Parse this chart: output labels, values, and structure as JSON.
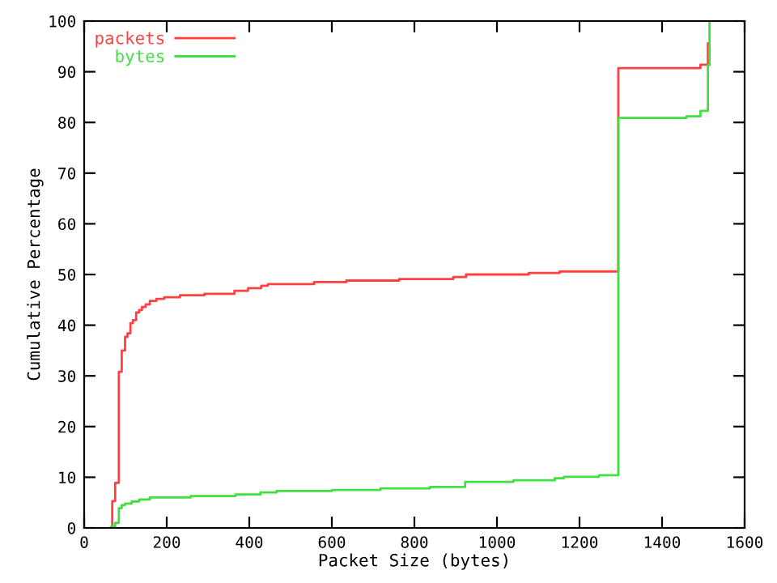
{
  "chart_data": {
    "type": "step",
    "xlabel": "Packet Size (bytes)",
    "ylabel": "Cumulative Percentage",
    "xlim": [
      0,
      1600
    ],
    "ylim": [
      0,
      100
    ],
    "xticks": [
      0,
      200,
      400,
      600,
      800,
      1000,
      1200,
      1400,
      1600
    ],
    "yticks": [
      0,
      10,
      20,
      30,
      40,
      50,
      60,
      70,
      80,
      90,
      100
    ],
    "legend": "top left",
    "grid": false,
    "series": [
      {
        "name": "packets",
        "color": "#ff4040",
        "x": [
          64,
          68,
          75,
          84,
          91,
          99,
          105,
          112,
          118,
          126,
          133,
          140,
          149,
          159,
          175,
          194,
          232,
          291,
          364,
          397,
          429,
          445,
          557,
          635,
          763,
          894,
          925,
          1077,
          1152,
          1294,
          1493,
          1511
        ],
        "values": [
          0,
          5.3,
          8.9,
          30.8,
          35,
          37.7,
          38.4,
          40.4,
          41,
          42.5,
          43,
          43.6,
          44.1,
          44.8,
          45.2,
          45.5,
          45.9,
          46.2,
          46.8,
          47.3,
          47.8,
          48.1,
          48.5,
          48.8,
          49.1,
          49.5,
          50,
          50.3,
          50.6,
          90.7,
          91.4,
          95.6
        ]
      },
      {
        "name": "bytes",
        "color": "#40e040",
        "x": [
          64,
          66,
          75,
          84,
          91,
          99,
          115,
          133,
          159,
          258,
          367,
          427,
          466,
          600,
          718,
          838,
          923,
          1040,
          1140,
          1162,
          1247,
          1294,
          1459,
          1493,
          1511,
          1515
        ],
        "values": [
          0,
          0.3,
          1,
          3.9,
          4.5,
          4.8,
          5.2,
          5.6,
          6,
          6.3,
          6.6,
          7,
          7.3,
          7.5,
          7.8,
          8.1,
          9.1,
          9.4,
          9.8,
          10.1,
          10.4,
          80.9,
          81.2,
          82.3,
          91.3,
          100
        ]
      }
    ]
  }
}
